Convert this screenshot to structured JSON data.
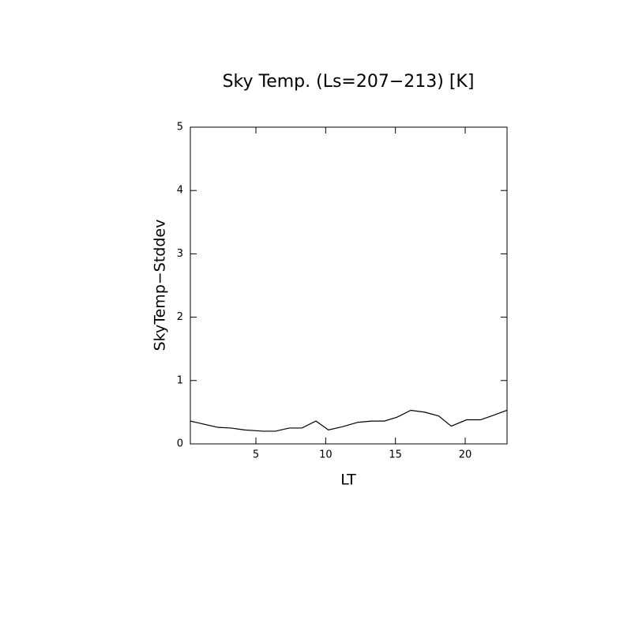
{
  "chart_data": {
    "type": "line",
    "title": "Sky Temp. (Ls=207−213) [K]",
    "x_label": "LT",
    "y_label": "SkyTemp−Stddev",
    "x": [
      0.3,
      2.3,
      3.2,
      4.2,
      5.5,
      6.4,
      7.4,
      8.3,
      9.3,
      10.2,
      11.2,
      12.3,
      13.3,
      14.2,
      15.1,
      16.1,
      17.1,
      18.1,
      19.0,
      20.1,
      21.1,
      22.0,
      23.0
    ],
    "series": [
      {
        "color": "#000000",
        "values": [
          0.36,
          0.26,
          0.25,
          0.22,
          0.2,
          0.2,
          0.25,
          0.25,
          0.36,
          0.22,
          0.27,
          0.34,
          0.36,
          0.36,
          0.42,
          0.53,
          0.5,
          0.44,
          0.28,
          0.38,
          0.38,
          0.45,
          0.53
        ]
      }
    ],
    "xlim": [
      0.3,
      23.0
    ],
    "ylim": [
      0,
      5
    ],
    "xticks": [
      5,
      10,
      15,
      20
    ],
    "yticks": [
      0,
      1,
      2,
      3,
      4,
      5
    ]
  }
}
